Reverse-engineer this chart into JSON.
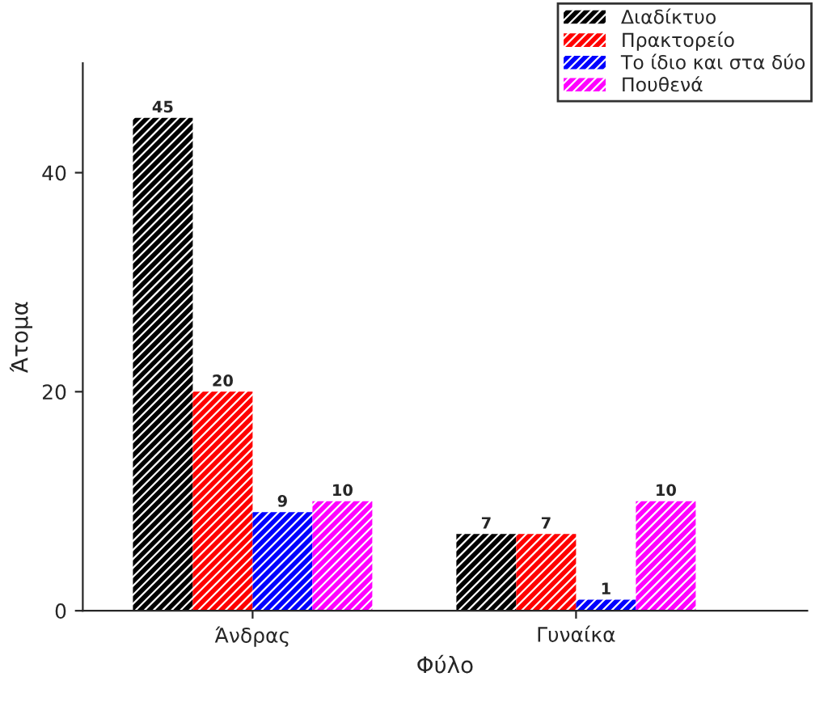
{
  "chart_data": {
    "type": "bar",
    "xlabel": "Φύλο",
    "ylabel": "Άτομα",
    "categories": [
      "Άνδρας",
      "Γυναίκα"
    ],
    "series": [
      {
        "name": "Διαδίκτυο",
        "color": "#000000",
        "values": [
          45,
          7
        ]
      },
      {
        "name": "Πρακτορείο",
        "color": "#ff0000",
        "values": [
          20,
          7
        ]
      },
      {
        "name": "Το ίδιο και στα δύο",
        "color": "#0000ff",
        "values": [
          9,
          1
        ]
      },
      {
        "name": "Πουθενά",
        "color": "#ff00ff",
        "values": [
          10,
          10
        ]
      }
    ],
    "ylim": [
      0,
      50
    ],
    "yticks": [
      0,
      20,
      40
    ],
    "grid": false,
    "legend": "top right",
    "data_labels": true
  }
}
